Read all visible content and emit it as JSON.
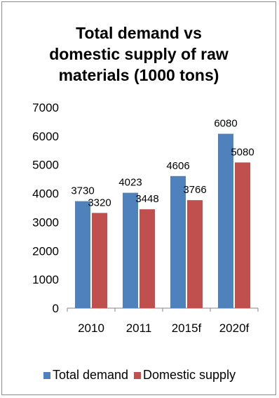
{
  "chart_data": {
    "type": "bar",
    "title_lines": [
      "Total demand vs",
      "domestic supply of raw",
      "materials (1000 tons)"
    ],
    "categories": [
      "2010",
      "2011",
      "2015f",
      "2020f"
    ],
    "series": [
      {
        "name": "Total demand",
        "values": [
          3730,
          4023,
          4606,
          6080
        ],
        "color": "#4f81bd"
      },
      {
        "name": "Domestic supply",
        "values": [
          3320,
          3448,
          3766,
          5080
        ],
        "color": "#c0504d"
      }
    ],
    "yticks": [
      "0",
      "1000",
      "2000",
      "3000",
      "4000",
      "5000",
      "6000",
      "7000"
    ],
    "ylim": [
      0,
      7000
    ],
    "grid": false,
    "legend_position": "bottom"
  }
}
